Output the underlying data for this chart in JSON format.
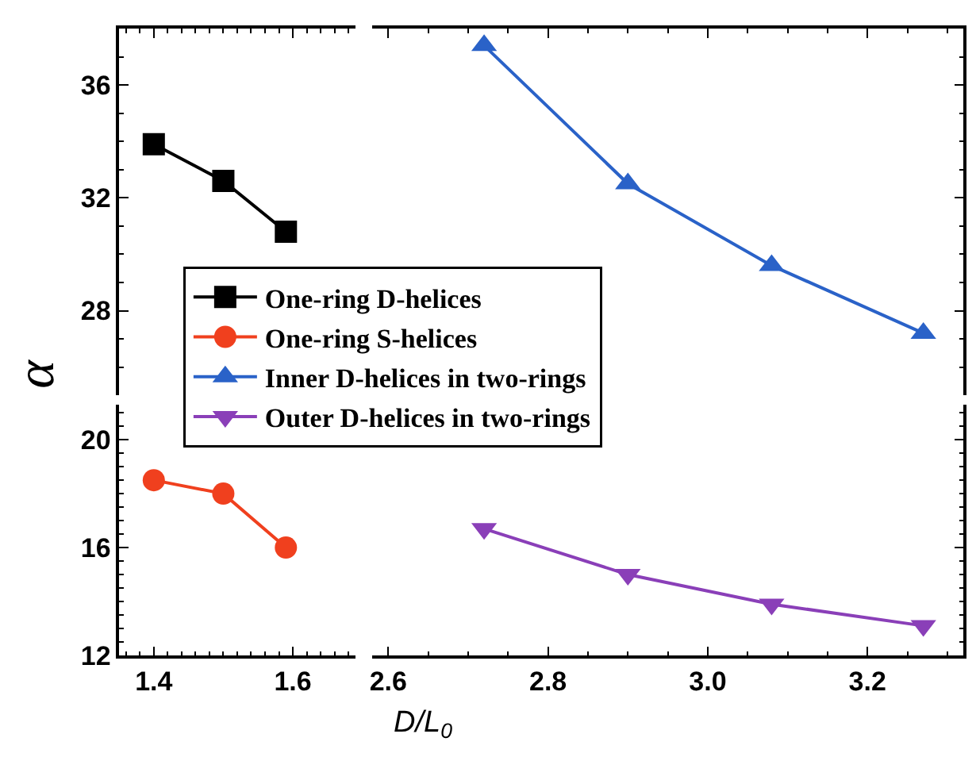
{
  "chart_data": [
    {
      "type": "line",
      "ylabel": "α",
      "xlim": [
        1.35,
        1.69
      ],
      "ylim": [
        25,
        38
      ],
      "xticks": [
        1.4,
        1.6
      ],
      "yticks": [
        28,
        32,
        36
      ],
      "tick_labels": "y",
      "legend": "bottom right",
      "series": [
        {
          "name": "One-ring D-helices",
          "color": "#000000",
          "marker": "square",
          "x": [
            1.4,
            1.5,
            1.59
          ],
          "values": [
            33.9,
            32.6,
            30.8
          ]
        }
      ]
    },
    {
      "type": "line",
      "xlim": [
        2.58,
        3.32
      ],
      "ylim": [
        25,
        38
      ],
      "xticks": [
        2.6,
        2.8,
        3,
        3.2
      ],
      "yticks": [
        28,
        32,
        36
      ],
      "tick_labels": false,
      "series": [
        {
          "name": "Inner D-helices in two-rings",
          "color": "#2a62c8",
          "marker": "triangle",
          "x": [
            2.72,
            2.9,
            3.08,
            3.27
          ],
          "values": [
            37.4,
            32.5,
            29.6,
            27.2
          ]
        }
      ]
    },
    {
      "type": "line",
      "xlim": [
        1.35,
        1.69
      ],
      "ylim": [
        12,
        21.3
      ],
      "xticks": [
        1.4,
        1.6
      ],
      "yticks": [
        12,
        16,
        20
      ],
      "series": [
        {
          "name": "One-ring S-helices",
          "color": "#f0401e",
          "marker": "circle",
          "x": [
            1.4,
            1.5,
            1.59
          ],
          "values": [
            18.5,
            18.0,
            16.0
          ]
        }
      ]
    },
    {
      "type": "line",
      "xlabel": "D/L$_{0}$",
      "xlim": [
        2.58,
        3.32
      ],
      "ylim": [
        12,
        21.3
      ],
      "xticks": [
        2.6,
        2.8,
        {
          "value": 3.0,
          "label": "3.0"
        },
        3.2
      ],
      "yticks": [
        12,
        16,
        20
      ],
      "tick_labels": "x",
      "series": [
        {
          "name": "Outer D-helices in two-rings",
          "color": "#8a3fb8",
          "marker": "triangle-down",
          "x": [
            2.72,
            2.9,
            3.08,
            3.27
          ],
          "values": [
            16.7,
            15.0,
            13.9,
            13.1
          ]
        }
      ]
    }
  ]
}
